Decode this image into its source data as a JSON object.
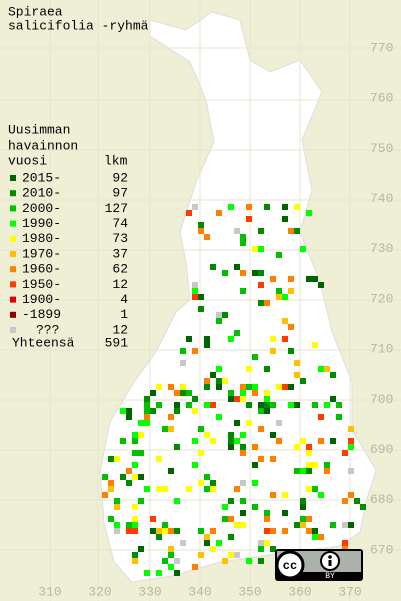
{
  "title": [
    "Spiraea",
    "salicifolia -ryhmä"
  ],
  "legend": {
    "heading": [
      "Uusimman",
      "havainnon",
      "vuosi"
    ],
    "count_heading": "lkm",
    "items": [
      {
        "label": "2015-",
        "count": 92,
        "color": "#006400"
      },
      {
        "label": "2010-",
        "count": 97,
        "color": "#008c00"
      },
      {
        "label": "2000-",
        "count": 127,
        "color": "#00c000"
      },
      {
        "label": "1990-",
        "count": 74,
        "color": "#00ff00"
      },
      {
        "label": "1980-",
        "count": 73,
        "color": "#ffff00"
      },
      {
        "label": "1970-",
        "count": 37,
        "color": "#ffc000"
      },
      {
        "label": "1960-",
        "count": 62,
        "color": "#ff7f00"
      },
      {
        "label": "1950-",
        "count": 12,
        "color": "#ff3c00"
      },
      {
        "label": "1900-",
        "count": 4,
        "color": "#e00000"
      },
      {
        "label": "-1899",
        "count": 1,
        "color": "#8c0000"
      },
      {
        "label": "???",
        "count": 12,
        "color": "#c8c8c8"
      }
    ],
    "total_label": "Yhteensä",
    "total": 591
  },
  "grid": {
    "y_labels": [
      770,
      760,
      750,
      740,
      730,
      720,
      710,
      700,
      690,
      680,
      670
    ],
    "x_labels": [
      310,
      320,
      330,
      340,
      350,
      360,
      370
    ]
  },
  "license": {
    "cc": "cc",
    "by": "BY"
  }
}
